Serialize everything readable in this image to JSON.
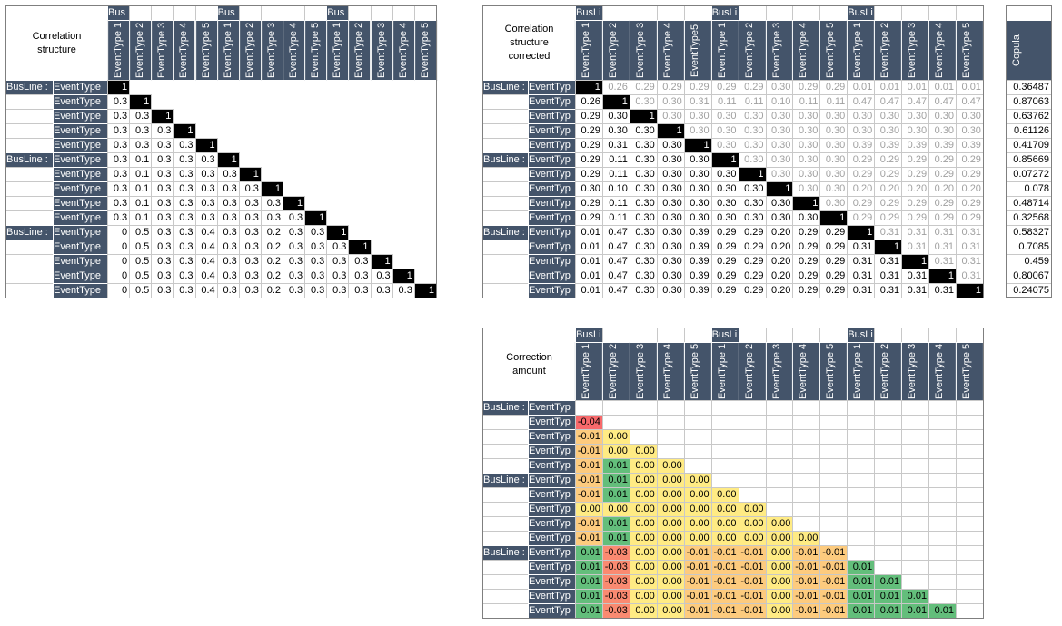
{
  "tables": [
    {
      "title": "Correlation structure",
      "group_labels": [
        "Bus",
        "Bus",
        "Bus"
      ],
      "columns": [
        "EventType 1",
        "EventType 2",
        "EventType 3",
        "EventType 4",
        "EventType 5",
        "EventType 1",
        "EventType 2",
        "EventType 3",
        "EventType 4",
        "EventType 5",
        "EventType 1",
        "EventType 2",
        "EventType 3",
        "EventType 4",
        "EventType 5"
      ],
      "row_groups": [
        "BusLine :",
        "BusLine :",
        "BusLine :"
      ],
      "row_labels": [
        "EventType",
        "EventType",
        "EventType",
        "EventType",
        "EventType",
        "EventType",
        "EventType",
        "EventType",
        "EventType",
        "EventType",
        "EventType",
        "EventType",
        "EventType",
        "EventType",
        "EventType"
      ],
      "rows": [
        [
          "1"
        ],
        [
          "0.3",
          "1"
        ],
        [
          "0.3",
          "0.3",
          "1"
        ],
        [
          "0.3",
          "0.3",
          "0.3",
          "1"
        ],
        [
          "0.3",
          "0.3",
          "0.3",
          "0.3",
          "1"
        ],
        [
          "0.3",
          "0.1",
          "0.3",
          "0.3",
          "0.3",
          "1"
        ],
        [
          "0.3",
          "0.1",
          "0.3",
          "0.3",
          "0.3",
          "0.3",
          "1"
        ],
        [
          "0.3",
          "0.1",
          "0.3",
          "0.3",
          "0.3",
          "0.3",
          "0.3",
          "1"
        ],
        [
          "0.3",
          "0.1",
          "0.3",
          "0.3",
          "0.3",
          "0.3",
          "0.3",
          "0.3",
          "1"
        ],
        [
          "0.3",
          "0.1",
          "0.3",
          "0.3",
          "0.3",
          "0.3",
          "0.3",
          "0.3",
          "0.3",
          "1"
        ],
        [
          "0",
          "0.5",
          "0.3",
          "0.3",
          "0.4",
          "0.3",
          "0.3",
          "0.2",
          "0.3",
          "0.3",
          "1"
        ],
        [
          "0",
          "0.5",
          "0.3",
          "0.3",
          "0.4",
          "0.3",
          "0.3",
          "0.2",
          "0.3",
          "0.3",
          "0.3",
          "1"
        ],
        [
          "0",
          "0.5",
          "0.3",
          "0.3",
          "0.4",
          "0.3",
          "0.3",
          "0.2",
          "0.3",
          "0.3",
          "0.3",
          "0.3",
          "1"
        ],
        [
          "0",
          "0.5",
          "0.3",
          "0.3",
          "0.4",
          "0.3",
          "0.3",
          "0.2",
          "0.3",
          "0.3",
          "0.3",
          "0.3",
          "0.3",
          "1"
        ],
        [
          "0",
          "0.5",
          "0.3",
          "0.3",
          "0.4",
          "0.3",
          "0.3",
          "0.2",
          "0.3",
          "0.3",
          "0.3",
          "0.3",
          "0.3",
          "0.3",
          "1"
        ]
      ]
    },
    {
      "title": "Correlation structure corrected",
      "group_labels": [
        "BusLi",
        "BusLi",
        "BusLi"
      ],
      "columns": [
        "EventType 1",
        "EventType 2",
        "EventType 3",
        "EventType 4",
        "EventType5",
        "EventType 1",
        "EventType 2",
        "EventType 3",
        "EventType 4",
        "EventType 5",
        "EventType 1",
        "EventType 2",
        "EventType 3",
        "EventType 4",
        "EventType 5"
      ],
      "row_groups": [
        "BusLine :",
        "BusLine :",
        "BusLine :"
      ],
      "row_labels": [
        "EventTyp",
        "EventTyp",
        "EventTyp",
        "EventTyp",
        "EventTyp",
        "EventTyp",
        "EventTyp",
        "EventTyp",
        "EventTyp",
        "EventTyp",
        "EventTyp",
        "EventTyp",
        "EventTyp",
        "EventTyp",
        "EventTyp"
      ],
      "rows": [
        [
          "1",
          "0.26",
          "0.29",
          "0.29",
          "0.29",
          "0.29",
          "0.29",
          "0.30",
          "0.29",
          "0.29",
          "0.01",
          "0.01",
          "0.01",
          "0.01",
          "0.01"
        ],
        [
          "0.26",
          "1",
          "0.30",
          "0.30",
          "0.31",
          "0.11",
          "0.11",
          "0.10",
          "0.11",
          "0.11",
          "0.47",
          "0.47",
          "0.47",
          "0.47",
          "0.47"
        ],
        [
          "0.29",
          "0.30",
          "1",
          "0.30",
          "0.30",
          "0.30",
          "0.30",
          "0.30",
          "0.30",
          "0.30",
          "0.30",
          "0.30",
          "0.30",
          "0.30",
          "0.30"
        ],
        [
          "0.29",
          "0.30",
          "0.30",
          "1",
          "0.30",
          "0.30",
          "0.30",
          "0.30",
          "0.30",
          "0.30",
          "0.30",
          "0.30",
          "0.30",
          "0.30",
          "0.30"
        ],
        [
          "0.29",
          "0.31",
          "0.30",
          "0.30",
          "1",
          "0.30",
          "0.30",
          "0.30",
          "0.30",
          "0.30",
          "0.39",
          "0.39",
          "0.39",
          "0.39",
          "0.39"
        ],
        [
          "0.29",
          "0.11",
          "0.30",
          "0.30",
          "0.30",
          "1",
          "0.30",
          "0.30",
          "0.30",
          "0.30",
          "0.29",
          "0.29",
          "0.29",
          "0.29",
          "0.29"
        ],
        [
          "0.29",
          "0.11",
          "0.30",
          "0.30",
          "0.30",
          "0.30",
          "1",
          "0.30",
          "0.30",
          "0.30",
          "0.29",
          "0.29",
          "0.29",
          "0.29",
          "0.29"
        ],
        [
          "0.30",
          "0.10",
          "0.30",
          "0.30",
          "0.30",
          "0.30",
          "0.30",
          "1",
          "0.30",
          "0.30",
          "0.20",
          "0.20",
          "0.20",
          "0.20",
          "0.20"
        ],
        [
          "0.29",
          "0.11",
          "0.30",
          "0.30",
          "0.30",
          "0.30",
          "0.30",
          "0.30",
          "1",
          "0.30",
          "0.29",
          "0.29",
          "0.29",
          "0.29",
          "0.29"
        ],
        [
          "0.29",
          "0.11",
          "0.30",
          "0.30",
          "0.30",
          "0.30",
          "0.30",
          "0.30",
          "0.30",
          "1",
          "0.29",
          "0.29",
          "0.29",
          "0.29",
          "0.29"
        ],
        [
          "0.01",
          "0.47",
          "0.30",
          "0.30",
          "0.39",
          "0.29",
          "0.29",
          "0.20",
          "0.29",
          "0.29",
          "1",
          "0.31",
          "0.31",
          "0.31",
          "0.31"
        ],
        [
          "0.01",
          "0.47",
          "0.30",
          "0.30",
          "0.39",
          "0.29",
          "0.29",
          "0.20",
          "0.29",
          "0.29",
          "0.31",
          "1",
          "0.31",
          "0.31",
          "0.31"
        ],
        [
          "0.01",
          "0.47",
          "0.30",
          "0.30",
          "0.39",
          "0.29",
          "0.29",
          "0.20",
          "0.29",
          "0.29",
          "0.31",
          "0.31",
          "1",
          "0.31",
          "0.31"
        ],
        [
          "0.01",
          "0.47",
          "0.30",
          "0.30",
          "0.39",
          "0.29",
          "0.29",
          "0.20",
          "0.29",
          "0.29",
          "0.31",
          "0.31",
          "0.31",
          "1",
          "0.31"
        ],
        [
          "0.01",
          "0.47",
          "0.30",
          "0.30",
          "0.39",
          "0.29",
          "0.29",
          "0.20",
          "0.29",
          "0.29",
          "0.31",
          "0.31",
          "0.31",
          "0.31",
          "1"
        ]
      ]
    },
    {
      "title": "Correction amount",
      "group_labels": [
        "BusLi",
        "BusLi",
        "BusLi"
      ],
      "columns": [
        "EventType 1",
        "EventType 2",
        "EventType 3",
        "EventType 4",
        "EventType 5",
        "EventType 1",
        "EventType 2",
        "EventType 3",
        "EventType 4",
        "EventType 5",
        "EventType 1",
        "EventType 2",
        "EventType 3",
        "EventType 4",
        "EventType 5"
      ],
      "row_groups": [
        "BusLine :",
        "BusLine :",
        "BusLine :"
      ],
      "row_labels": [
        "EventTyp",
        "EventTyp",
        "EventTyp",
        "EventTyp",
        "EventTyp",
        "EventTyp",
        "EventTyp",
        "EventTyp",
        "EventTyp",
        "EventTyp",
        "EventTyp",
        "EventTyp",
        "EventTyp",
        "EventTyp",
        "EventTyp"
      ],
      "rows": [
        [],
        [
          "-0.04"
        ],
        [
          "-0.01",
          "0.00"
        ],
        [
          "-0.01",
          "0.00",
          "0.00"
        ],
        [
          "-0.01",
          "0.01",
          "0.00",
          "0.00"
        ],
        [
          "-0.01",
          "0.01",
          "0.00",
          "0.00",
          "0.00"
        ],
        [
          "-0.01",
          "0.01",
          "0.00",
          "0.00",
          "0.00",
          "0.00"
        ],
        [
          "0.00",
          "0.00",
          "0.00",
          "0.00",
          "0.00",
          "0.00",
          "0.00"
        ],
        [
          "-0.01",
          "0.01",
          "0.00",
          "0.00",
          "0.00",
          "0.00",
          "0.00",
          "0.00"
        ],
        [
          "-0.01",
          "0.01",
          "0.00",
          "0.00",
          "0.00",
          "0.00",
          "0.00",
          "0.00",
          "0.00"
        ],
        [
          "0.01",
          "-0.03",
          "0.00",
          "0.00",
          "-0.01",
          "-0.01",
          "-0.01",
          "0.00",
          "-0.01",
          "-0.01"
        ],
        [
          "0.01",
          "-0.03",
          "0.00",
          "0.00",
          "-0.01",
          "-0.01",
          "-0.01",
          "0.00",
          "-0.01",
          "-0.01",
          "0.01"
        ],
        [
          "0.01",
          "-0.03",
          "0.00",
          "0.00",
          "-0.01",
          "-0.01",
          "-0.01",
          "0.00",
          "-0.01",
          "-0.01",
          "0.01",
          "0.01"
        ],
        [
          "0.01",
          "-0.03",
          "0.00",
          "0.00",
          "-0.01",
          "-0.01",
          "-0.01",
          "0.00",
          "-0.01",
          "-0.01",
          "0.01",
          "0.01",
          "0.01"
        ],
        [
          "0.01",
          "-0.03",
          "0.00",
          "0.00",
          "-0.01",
          "-0.01",
          "-0.01",
          "0.00",
          "-0.01",
          "-0.01",
          "0.01",
          "0.01",
          "0.01",
          "0.01"
        ]
      ]
    }
  ],
  "copula": {
    "header": "Copula",
    "values": [
      "0.36487",
      "0.87063",
      "0.63762",
      "0.61126",
      "0.41709",
      "0.85669",
      "0.07272",
      "0.078",
      "0.48714",
      "0.32568",
      "0.58327",
      "0.7085",
      "0.459",
      "0.80067",
      "0.24075"
    ]
  }
}
